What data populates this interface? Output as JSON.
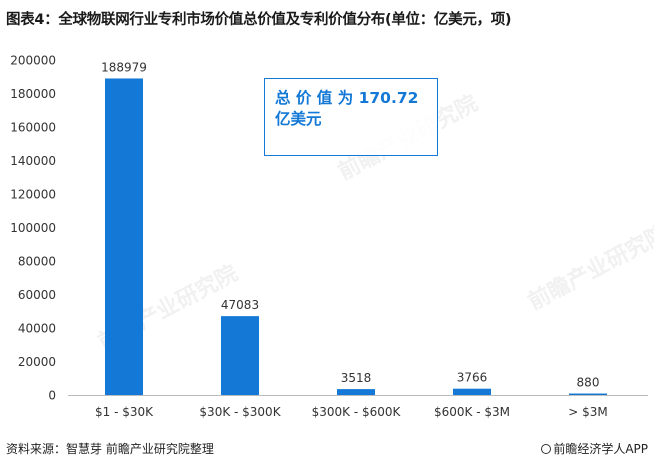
{
  "title": "图表4：全球物联网行业专利市场价值总价值及专利价值分布(单位：亿美元，项)",
  "annotation": "总 价 值 为 170.72 亿美元",
  "source": "资料来源：智慧芽 前瞻产业研究院整理",
  "brand": "前瞻经济学人APP",
  "watermark": "前瞻产业研究院",
  "colors": {
    "bar": "#1479d6",
    "axis": "#bbbbbb",
    "text": "#333333",
    "accent": "#1479d6"
  },
  "chart_data": {
    "type": "bar",
    "categories": [
      "$1 - $30K",
      "$30K - $300K",
      "$300K - $600K",
      "$600K - $3M",
      "> $3M"
    ],
    "values": [
      188979,
      47083,
      3518,
      3766,
      880
    ],
    "data_labels": [
      "188979",
      "47083",
      "3518",
      "3766",
      "880"
    ],
    "yticks": [
      0,
      20000,
      40000,
      60000,
      80000,
      100000,
      120000,
      140000,
      160000,
      180000,
      200000
    ],
    "ylim": [
      0,
      200000
    ],
    "grid": false,
    "xlabel": "",
    "ylabel": ""
  }
}
